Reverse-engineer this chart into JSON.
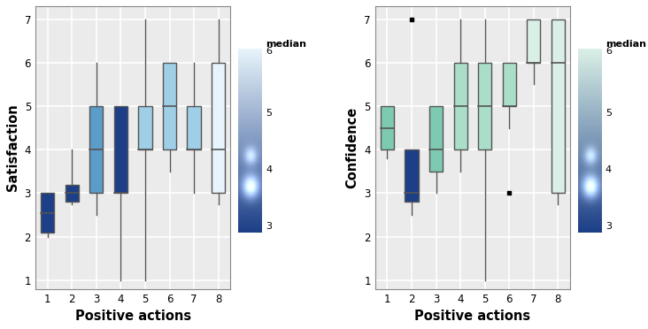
{
  "left": {
    "ylabel": "Satisfaction",
    "xlabel": "Positive actions",
    "ylim": [
      0.8,
      7.3
    ],
    "yticks": [
      1,
      2,
      3,
      4,
      5,
      6,
      7
    ],
    "xticks": [
      1,
      2,
      3,
      4,
      5,
      6,
      7,
      8
    ],
    "boxes": [
      {
        "x": 1,
        "q1": 2.1,
        "median": 2.55,
        "q3": 3.0,
        "whisker_low": 2.0,
        "whisker_high": 3.0,
        "fliers": [],
        "color": "#1c3f87"
      },
      {
        "x": 2,
        "q1": 2.8,
        "median": 3.0,
        "q3": 3.2,
        "whisker_low": 2.75,
        "whisker_high": 4.0,
        "fliers": [],
        "color": "#1c3f87"
      },
      {
        "x": 3,
        "q1": 3.0,
        "median": 4.0,
        "q3": 5.0,
        "whisker_low": 2.5,
        "whisker_high": 6.0,
        "fliers": [],
        "color": "#5b9cc9"
      },
      {
        "x": 4,
        "q1": 3.0,
        "median": 3.0,
        "q3": 5.0,
        "whisker_low": 1.0,
        "whisker_high": 5.0,
        "fliers": [],
        "color": "#1c3f87"
      },
      {
        "x": 5,
        "q1": 4.0,
        "median": 4.0,
        "q3": 5.0,
        "whisker_low": 1.0,
        "whisker_high": 7.0,
        "fliers": [],
        "color": "#9ecfe6"
      },
      {
        "x": 6,
        "q1": 4.0,
        "median": 5.0,
        "q3": 6.0,
        "whisker_low": 3.5,
        "whisker_high": 6.0,
        "fliers": [],
        "color": "#9ecfe6"
      },
      {
        "x": 7,
        "q1": 4.0,
        "median": 4.0,
        "q3": 5.0,
        "whisker_low": 3.0,
        "whisker_high": 6.0,
        "fliers": [],
        "color": "#9ecfe6"
      },
      {
        "x": 8,
        "q1": 3.0,
        "median": 4.0,
        "q3": 6.0,
        "whisker_low": 2.75,
        "whisker_high": 7.0,
        "fliers": [],
        "color": "#e8f4fb"
      }
    ],
    "legend_title": "median",
    "legend_values": [
      "6",
      "5",
      "4",
      "3"
    ],
    "legend_colors_top_bottom": [
      "#e8f4fb",
      "#1c3f87"
    ]
  },
  "right": {
    "ylabel": "Confidence",
    "xlabel": "Positive actions",
    "ylim": [
      0.8,
      7.3
    ],
    "yticks": [
      1,
      2,
      3,
      4,
      5,
      6,
      7
    ],
    "xticks": [
      1,
      2,
      3,
      4,
      5,
      6,
      7,
      8
    ],
    "boxes": [
      {
        "x": 1,
        "q1": 4.0,
        "median": 4.5,
        "q3": 5.0,
        "whisker_low": 3.8,
        "whisker_high": 5.0,
        "fliers": [],
        "color": "#7ec9b2"
      },
      {
        "x": 2,
        "q1": 2.8,
        "median": 3.0,
        "q3": 4.0,
        "whisker_low": 2.5,
        "whisker_high": 4.0,
        "fliers": [
          7.0
        ],
        "color": "#1c3f87"
      },
      {
        "x": 3,
        "q1": 3.5,
        "median": 4.0,
        "q3": 5.0,
        "whisker_low": 3.0,
        "whisker_high": 5.0,
        "fliers": [],
        "color": "#7ec9b2"
      },
      {
        "x": 4,
        "q1": 4.0,
        "median": 5.0,
        "q3": 6.0,
        "whisker_low": 3.5,
        "whisker_high": 7.0,
        "fliers": [],
        "color": "#aadec8"
      },
      {
        "x": 5,
        "q1": 4.0,
        "median": 5.0,
        "q3": 6.0,
        "whisker_low": 1.0,
        "whisker_high": 7.0,
        "fliers": [],
        "color": "#aadec8"
      },
      {
        "x": 6,
        "q1": 5.0,
        "median": 5.0,
        "q3": 6.0,
        "whisker_low": 4.5,
        "whisker_high": 6.0,
        "fliers": [
          3.0
        ],
        "color": "#aadec8"
      },
      {
        "x": 7,
        "q1": 6.0,
        "median": 6.0,
        "q3": 7.0,
        "whisker_low": 5.5,
        "whisker_high": 7.0,
        "fliers": [],
        "color": "#daf0e6"
      },
      {
        "x": 8,
        "q1": 3.0,
        "median": 6.0,
        "q3": 7.0,
        "whisker_low": 2.75,
        "whisker_high": 7.0,
        "fliers": [],
        "color": "#daf0e6"
      }
    ],
    "legend_title": "median",
    "legend_values": [
      "6",
      "5",
      "4",
      "3"
    ],
    "legend_colors_top_bottom": [
      "#daf0e6",
      "#1c3f87"
    ]
  },
  "box_width": 0.55,
  "linecolor": "#555555",
  "linewidth": 1.0,
  "median_linewidth": 1.2,
  "background_color": "#ebebeb",
  "grid_color": "#ffffff",
  "figure_bg": "#ffffff",
  "tick_fontsize": 8.5,
  "label_fontsize": 10.5
}
